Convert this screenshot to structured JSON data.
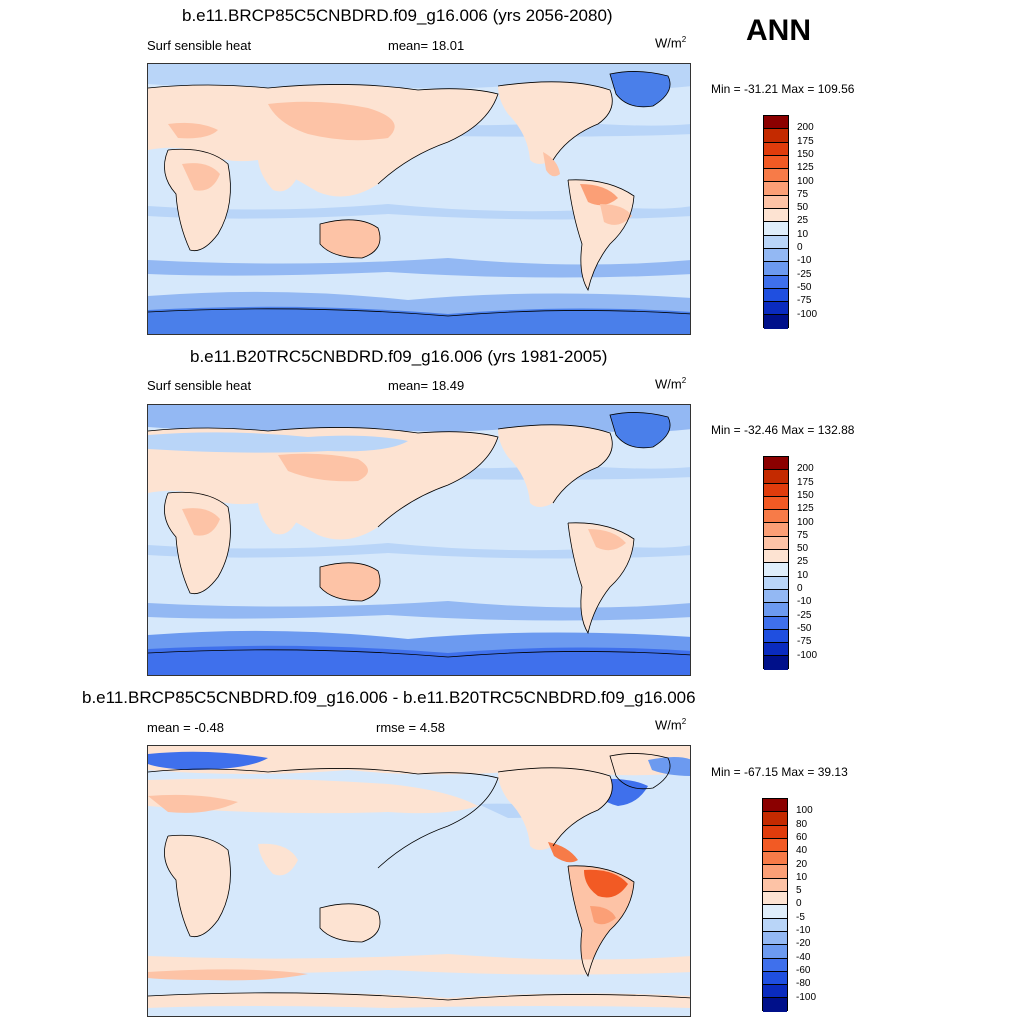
{
  "season_label": "ANN",
  "panels": [
    {
      "title": "b.e11.BRCP85C5CNBDRD.f09_g16.006 (yrs 2056-2080)",
      "left_label": "Surf sensible heat",
      "center_label": "mean=  18.01",
      "units": "W/m",
      "units_sup": "2",
      "minmax": "Min = -31.21 Max = 109.56",
      "colorbar_ticks": [
        "200",
        "175",
        "150",
        "125",
        "100",
        "75",
        "50",
        "25",
        "10",
        "0",
        "-10",
        "-25",
        "-50",
        "-75",
        "-100"
      ],
      "colorbar_colors": [
        "#8b0000",
        "#c42a00",
        "#e03c0c",
        "#f25a24",
        "#f77b48",
        "#fb9f76",
        "#fdc3a6",
        "#fde3d2",
        "#dfeefb",
        "#b9d5f8",
        "#93b8f3",
        "#6c9af0",
        "#3f70ec",
        "#1f4fe0",
        "#0a2bbf",
        "#00108a"
      ]
    },
    {
      "title": "b.e11.B20TRC5CNBDRD.f09_g16.006 (yrs 1981-2005)",
      "left_label": "Surf sensible heat",
      "center_label": "mean=  18.49",
      "units": "W/m",
      "units_sup": "2",
      "minmax": "Min = -32.46 Max = 132.88",
      "colorbar_ticks": [
        "200",
        "175",
        "150",
        "125",
        "100",
        "75",
        "50",
        "25",
        "10",
        "0",
        "-10",
        "-25",
        "-50",
        "-75",
        "-100"
      ],
      "colorbar_colors": [
        "#8b0000",
        "#c42a00",
        "#e03c0c",
        "#f25a24",
        "#f77b48",
        "#fb9f76",
        "#fdc3a6",
        "#fde3d2",
        "#dfeefb",
        "#b9d5f8",
        "#93b8f3",
        "#6c9af0",
        "#3f70ec",
        "#1f4fe0",
        "#0a2bbf",
        "#00108a"
      ]
    },
    {
      "title": "b.e11.BRCP85C5CNBDRD.f09_g16.006 - b.e11.B20TRC5CNBDRD.f09_g16.006",
      "left_label": "mean =  -0.48",
      "center_label": "rmse =   4.58",
      "units": "W/m",
      "units_sup": "2",
      "minmax": "Min = -67.15 Max =  39.13",
      "colorbar_ticks": [
        "100",
        "80",
        "60",
        "40",
        "20",
        "10",
        "5",
        "0",
        "-5",
        "-10",
        "-20",
        "-40",
        "-60",
        "-80",
        "-100"
      ],
      "colorbar_colors": [
        "#8b0000",
        "#c42a00",
        "#e03c0c",
        "#f25a24",
        "#f77b48",
        "#fb9f76",
        "#fdc3a6",
        "#fde3d2",
        "#dfeefb",
        "#b9d5f8",
        "#93b8f3",
        "#6c9af0",
        "#3f70ec",
        "#1f4fe0",
        "#0a2bbf",
        "#00108a"
      ]
    }
  ]
}
